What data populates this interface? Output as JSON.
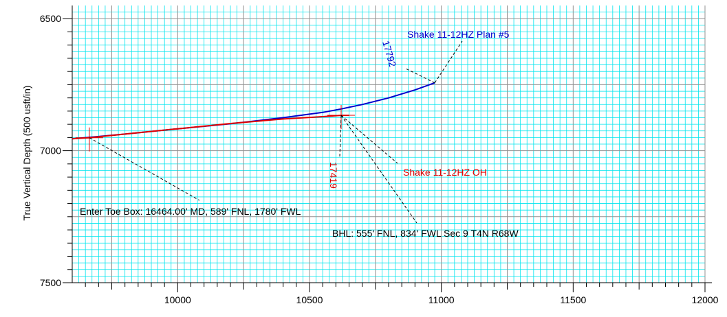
{
  "chart_data": {
    "type": "line",
    "ylabel": "True Vertical Depth (500 usft/in)",
    "xlabel": "",
    "xlim": [
      9600,
      12000
    ],
    "ylim": [
      7500,
      6450
    ],
    "y_inverted": true,
    "grid": true,
    "x_ticks": [
      "10000",
      "10500",
      "11000",
      "11500",
      "12000"
    ],
    "y_ticks": [
      "6500",
      "7000",
      "7500"
    ],
    "colors": {
      "grid_minor": "#00e5ee",
      "grid_major": "#909090",
      "plan": "#0000cc",
      "actual": "#e00000",
      "leader": "#000000"
    },
    "series": [
      {
        "name": "Shake 11-12HZ Plan #5",
        "color": "#0000cc",
        "x": [
          9600,
          9800,
          10000,
          10200,
          10400,
          10550,
          10620,
          10700,
          10800,
          10900,
          10975
        ],
        "y": [
          6955,
          6937,
          6917,
          6898,
          6875,
          6855,
          6842,
          6825,
          6800,
          6770,
          6743
        ]
      },
      {
        "name": "Shake 11-12HZ OH",
        "color": "#e00000",
        "x": [
          9600,
          9665,
          9800,
          10000,
          10200,
          10400,
          10550,
          10620,
          10650
        ],
        "y": [
          6955,
          6951,
          6937,
          6917,
          6897,
          6880,
          6871,
          6866,
          6866
        ]
      }
    ],
    "markers": [
      {
        "x": 9665,
        "y": 6951,
        "color": "#e00000"
      },
      {
        "x": 10620,
        "y": 6866,
        "color": "#e00000"
      }
    ],
    "annotations": [
      {
        "text": "Shake 11-12HZ Plan #5",
        "color": "#0000cc",
        "x": 10975,
        "y": 6743
      },
      {
        "text": "17792",
        "color": "#0000cc",
        "x": 10975,
        "y": 6743
      },
      {
        "text": "Shake 11-12HZ OH",
        "color": "#e00000",
        "x": 10620,
        "y": 6866
      },
      {
        "text": "17419",
        "color": "#e00000",
        "x": 10620,
        "y": 6866
      },
      {
        "text": "Enter Toe Box: 16464.00' MD, 589' FNL, 1780' FWL",
        "color": "#000000",
        "x": 9665,
        "y": 6951
      },
      {
        "text": "BHL: 555' FNL, 834' FWL Sec 9 T4N R68W",
        "color": "#000000",
        "x": 10620,
        "y": 6866
      }
    ]
  }
}
